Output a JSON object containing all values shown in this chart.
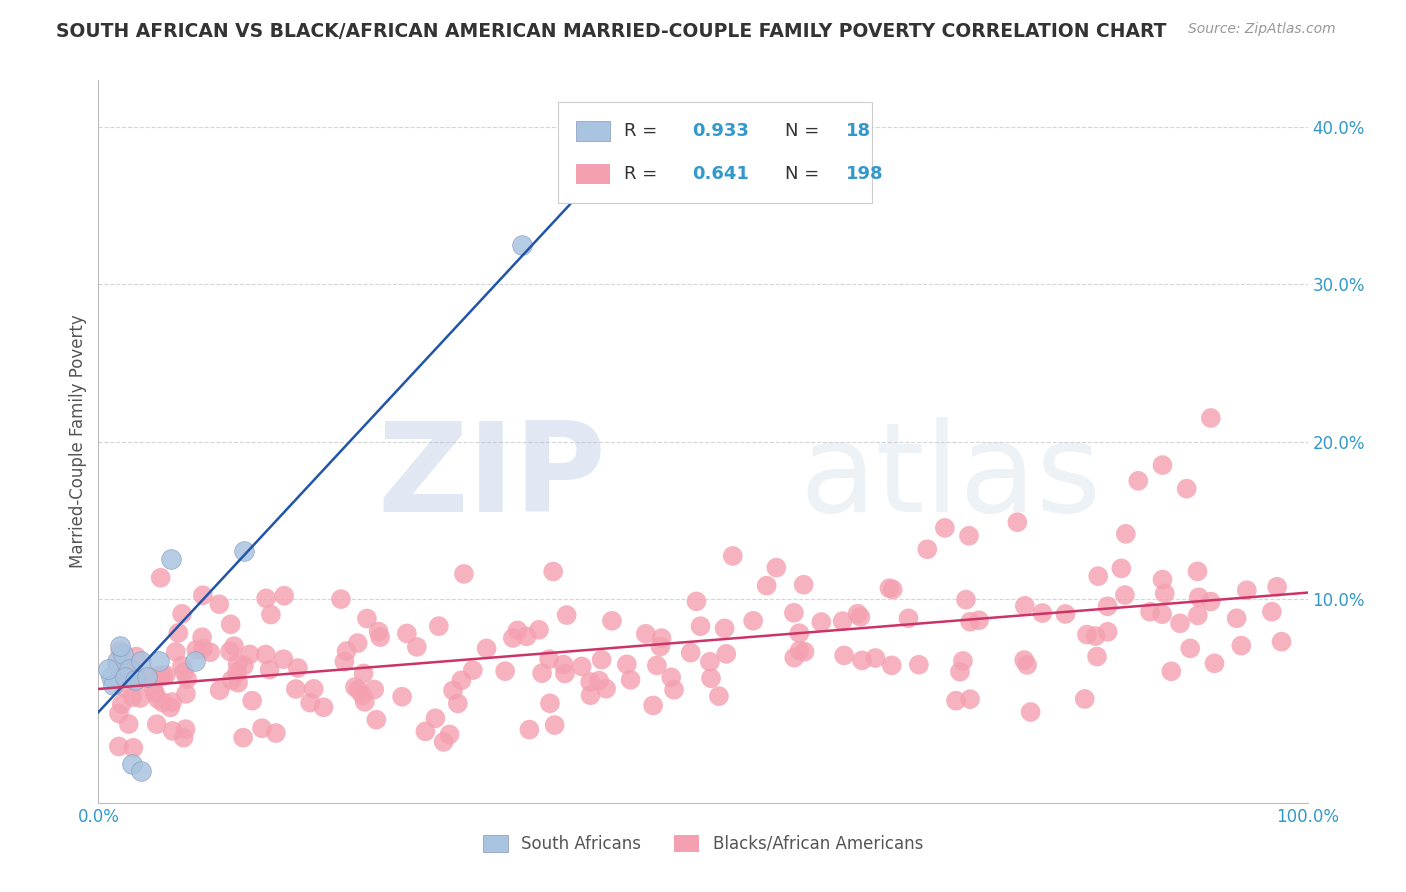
{
  "title": "SOUTH AFRICAN VS BLACK/AFRICAN AMERICAN MARRIED-COUPLE FAMILY POVERTY CORRELATION CHART",
  "source": "Source: ZipAtlas.com",
  "ylabel": "Married-Couple Family Poverty",
  "xlabel": "",
  "xlim": [
    0,
    1.0
  ],
  "ylim": [
    -0.03,
    0.43
  ],
  "yticks": [
    0.0,
    0.1,
    0.2,
    0.3,
    0.4
  ],
  "ytick_labels": [
    "",
    "10.0%",
    "20.0%",
    "30.0%",
    "40.0%"
  ],
  "xticks": [
    0.0,
    0.1,
    0.2,
    0.3,
    0.4,
    0.5,
    0.6,
    0.7,
    0.8,
    0.9,
    1.0
  ],
  "xtick_labels": [
    "0.0%",
    "",
    "",
    "",
    "",
    "",
    "",
    "",
    "",
    "",
    "100.0%"
  ],
  "sa_R": 0.933,
  "sa_N": 18,
  "baa_R": 0.641,
  "baa_N": 198,
  "sa_color": "#a8c4e0",
  "baa_color": "#f4a0b0",
  "sa_line_color": "#2255aa",
  "baa_line_color": "#cc3366",
  "sa_label": "South Africans",
  "baa_label": "Blacks/African Americans",
  "background_color": "#ffffff",
  "watermark_zip": "ZIP",
  "watermark_atlas": "atlas",
  "grid_color": "#cccccc",
  "title_color": "#333333",
  "axis_label_color": "#555555",
  "tick_label_color": "#3399cc",
  "legend_R_color": "#3399cc",
  "legend_N_color": "#3399cc",
  "legend_label_color": "#333333"
}
